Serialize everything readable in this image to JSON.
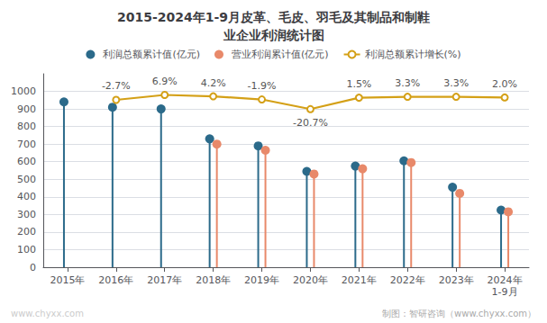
{
  "chart_data": {
    "type": "lollipop",
    "title": "2015-2024年1-9月皮革、毛皮、羽毛及其制品和制鞋\n业企业利润统计图",
    "categories": [
      "2015年",
      "2016年",
      "2017年",
      "2018年",
      "2019年",
      "2020年",
      "2021年",
      "2022年",
      "2023年",
      "2024年\n1-9月"
    ],
    "series": [
      {
        "name": "利润总额累计值(亿元)",
        "type": "lollipop",
        "color": "#2b6a8a",
        "marker": "circle",
        "values": [
          940,
          910,
          900,
          730,
          690,
          545,
          575,
          605,
          455,
          325
        ]
      },
      {
        "name": "营业利润累计值(亿元)",
        "type": "lollipop",
        "color": "#e8896a",
        "marker": "circle",
        "values": [
          null,
          null,
          null,
          700,
          665,
          530,
          560,
          595,
          420,
          315
        ]
      },
      {
        "name": "利润总额累计增长(%)",
        "type": "line",
        "color": "#d4a017",
        "marker": "circle",
        "axis": "y2",
        "values": [
          null,
          -2.7,
          6.9,
          4.2,
          -1.9,
          -20.7,
          1.5,
          3.3,
          3.3,
          2.0
        ],
        "value_labels": [
          null,
          "-2.7%",
          "6.9%",
          "4.2%",
          "-1.9%",
          "-20.7%",
          "1.5%",
          "3.3%",
          "3.3%",
          "2.0%"
        ]
      }
    ],
    "ylim": [
      0,
      1100
    ],
    "yticks": [
      0,
      100,
      200,
      300,
      400,
      500,
      600,
      700,
      800,
      900,
      1000
    ],
    "y2lim": [
      -328,
      48
    ],
    "grid": true,
    "legend": "top",
    "annotations": [
      "www.chyxx.com",
      "制图：智研咨询（www.chyxx.com）"
    ]
  }
}
